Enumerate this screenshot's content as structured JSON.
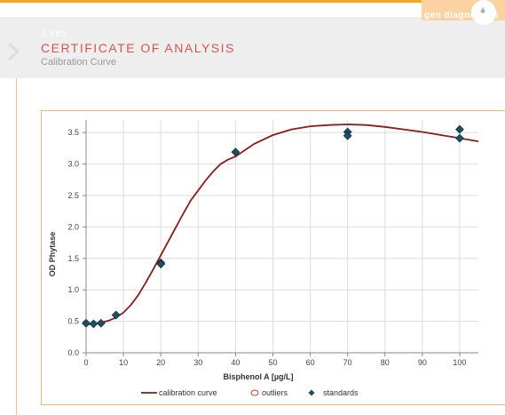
{
  "header": {
    "code": "A-YBS",
    "title": "CERTIFICATE OF ANALYSIS",
    "subtitle": "Calibration Curve",
    "brand": "gen diagnostics"
  },
  "chart_data": {
    "type": "scatter",
    "title": "",
    "xlabel": "Bisphenol A [µg/L]",
    "ylabel": "OD Phytase",
    "xlim": [
      0,
      105
    ],
    "ylim": [
      0,
      3.7
    ],
    "xticks": [
      0,
      10,
      20,
      30,
      40,
      50,
      60,
      70,
      80,
      90,
      100
    ],
    "yticks": [
      0.0,
      0.5,
      1.0,
      1.5,
      2.0,
      2.5,
      3.0,
      3.5
    ],
    "grid": true,
    "legend_position": "bottom",
    "legend": [
      "calibration curve",
      "outliers",
      "standards"
    ],
    "colors": {
      "curve": "#8b1a1a",
      "outliers": "#c0392b",
      "standards": "#1f4e5f"
    },
    "series": [
      {
        "name": "standards",
        "type": "scatter",
        "x": [
          0,
          2,
          4,
          8,
          20,
          20,
          40,
          70,
          70,
          100,
          100
        ],
        "y": [
          0.47,
          0.46,
          0.47,
          0.6,
          1.43,
          1.41,
          3.19,
          3.51,
          3.45,
          3.55,
          3.41
        ]
      },
      {
        "name": "calibration curve",
        "type": "line",
        "x": [
          0,
          2,
          4,
          6,
          8,
          10,
          12,
          14,
          16,
          18,
          20,
          22,
          24,
          26,
          28,
          30,
          32,
          34,
          36,
          38,
          40,
          45,
          50,
          55,
          60,
          65,
          70,
          75,
          80,
          85,
          90,
          95,
          100,
          105
        ],
        "y": [
          0.45,
          0.46,
          0.48,
          0.51,
          0.56,
          0.64,
          0.76,
          0.92,
          1.12,
          1.33,
          1.55,
          1.77,
          1.99,
          2.21,
          2.42,
          2.58,
          2.74,
          2.88,
          3.0,
          3.07,
          3.12,
          3.32,
          3.46,
          3.55,
          3.6,
          3.62,
          3.63,
          3.62,
          3.59,
          3.55,
          3.51,
          3.46,
          3.41,
          3.36
        ]
      },
      {
        "name": "outliers",
        "type": "scatter",
        "x": [],
        "y": []
      }
    ]
  }
}
